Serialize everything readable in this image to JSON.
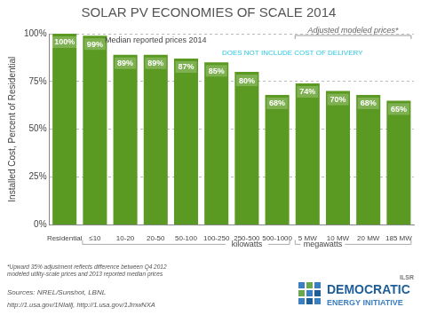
{
  "chart_data": {
    "type": "bar",
    "title": "SOLAR PV ECONOMIES OF SCALE 2014",
    "y_label": "Installed Cost, Percent of Residential",
    "categories": [
      "Residential",
      "≤10",
      "10-20",
      "20-50",
      "50-100",
      "100-250",
      "250-500",
      "500-1000",
      "5 MW",
      "10 MW",
      "20 MW",
      "185 MW"
    ],
    "values": [
      100,
      99,
      89,
      89,
      87,
      85,
      80,
      68,
      74,
      70,
      68,
      65
    ],
    "value_labels": [
      "100%",
      "99%",
      "89%",
      "89%",
      "87%",
      "85%",
      "80%",
      "68%",
      "74%",
      "70%",
      "68%",
      "65%"
    ],
    "color": "#5b9a22",
    "ylim": [
      0,
      100
    ],
    "yticks": [
      {
        "value": 0,
        "label": "0%"
      },
      {
        "value": 25,
        "label": "25%"
      },
      {
        "value": 50,
        "label": "50%"
      },
      {
        "value": 75,
        "label": "75%"
      },
      {
        "value": 100,
        "label": "100%"
      }
    ],
    "grid": true,
    "data_labels": true,
    "annotations": [
      "Median reported prices 2014",
      "Adjusted modeled prices*",
      "DOES NOT INCLUDE COST OF DELIVERY",
      "kilowatts",
      "megawatts"
    ],
    "footnote": [
      "*Upward 35% adjustment reflects difference between Q4 2012",
      "modeled utility-scale prices and 2013 reported median prices"
    ],
    "source": "Sources: NREL/Sunshot, LBNL",
    "source_links": "http://1.usa.gov/1NIallj, http://1.usa.gov/1JmwNXA",
    "logo": [
      "ILSR",
      "DEMOCRATIC",
      "ENERGY INITIATIVE"
    ]
  }
}
